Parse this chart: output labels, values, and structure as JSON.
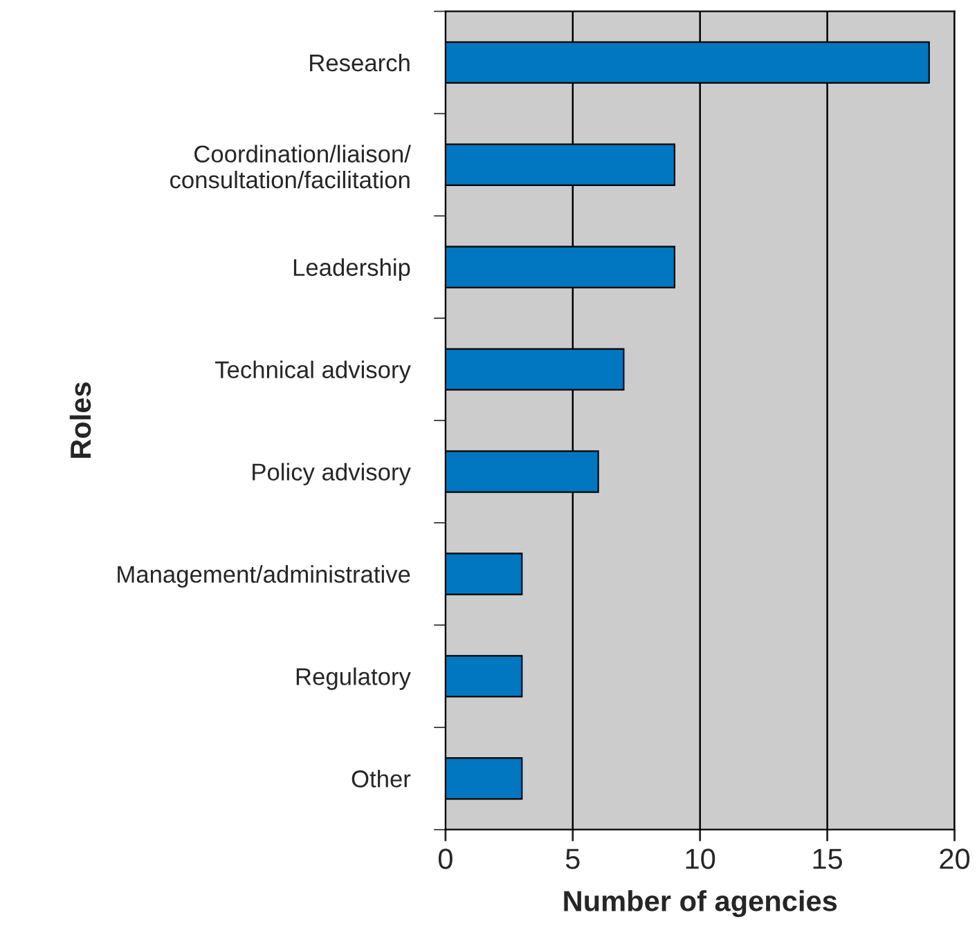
{
  "chart_data": {
    "type": "bar",
    "orientation": "horizontal",
    "xlabel": "Number of agencies",
    "ylabel": "Roles",
    "categories": [
      "Research",
      "Coordination/liaison/\nconsultation/facilitation",
      "Leadership",
      "Technical advisory",
      "Policy advisory",
      "Management/administrative",
      "Regulatory",
      "Other"
    ],
    "values": [
      19,
      9,
      9,
      7,
      6,
      3,
      3,
      3
    ],
    "color": "#0077c0",
    "xlim": [
      0,
      20
    ],
    "xticks": [
      0,
      5,
      10,
      15,
      20
    ],
    "grid": "x",
    "legend": false
  }
}
